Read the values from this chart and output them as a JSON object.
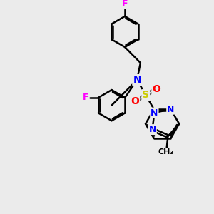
{
  "bg_color": "#ebebeb",
  "bond_color": "#000000",
  "bond_width": 1.8,
  "dbo": 0.07,
  "atom_colors": {
    "F": "#ff00ff",
    "N": "#0000ff",
    "S": "#cccc00",
    "O": "#ff0000",
    "C": "#000000"
  },
  "font_size": 9,
  "fig_size": [
    3.0,
    3.0
  ],
  "dpi": 100
}
